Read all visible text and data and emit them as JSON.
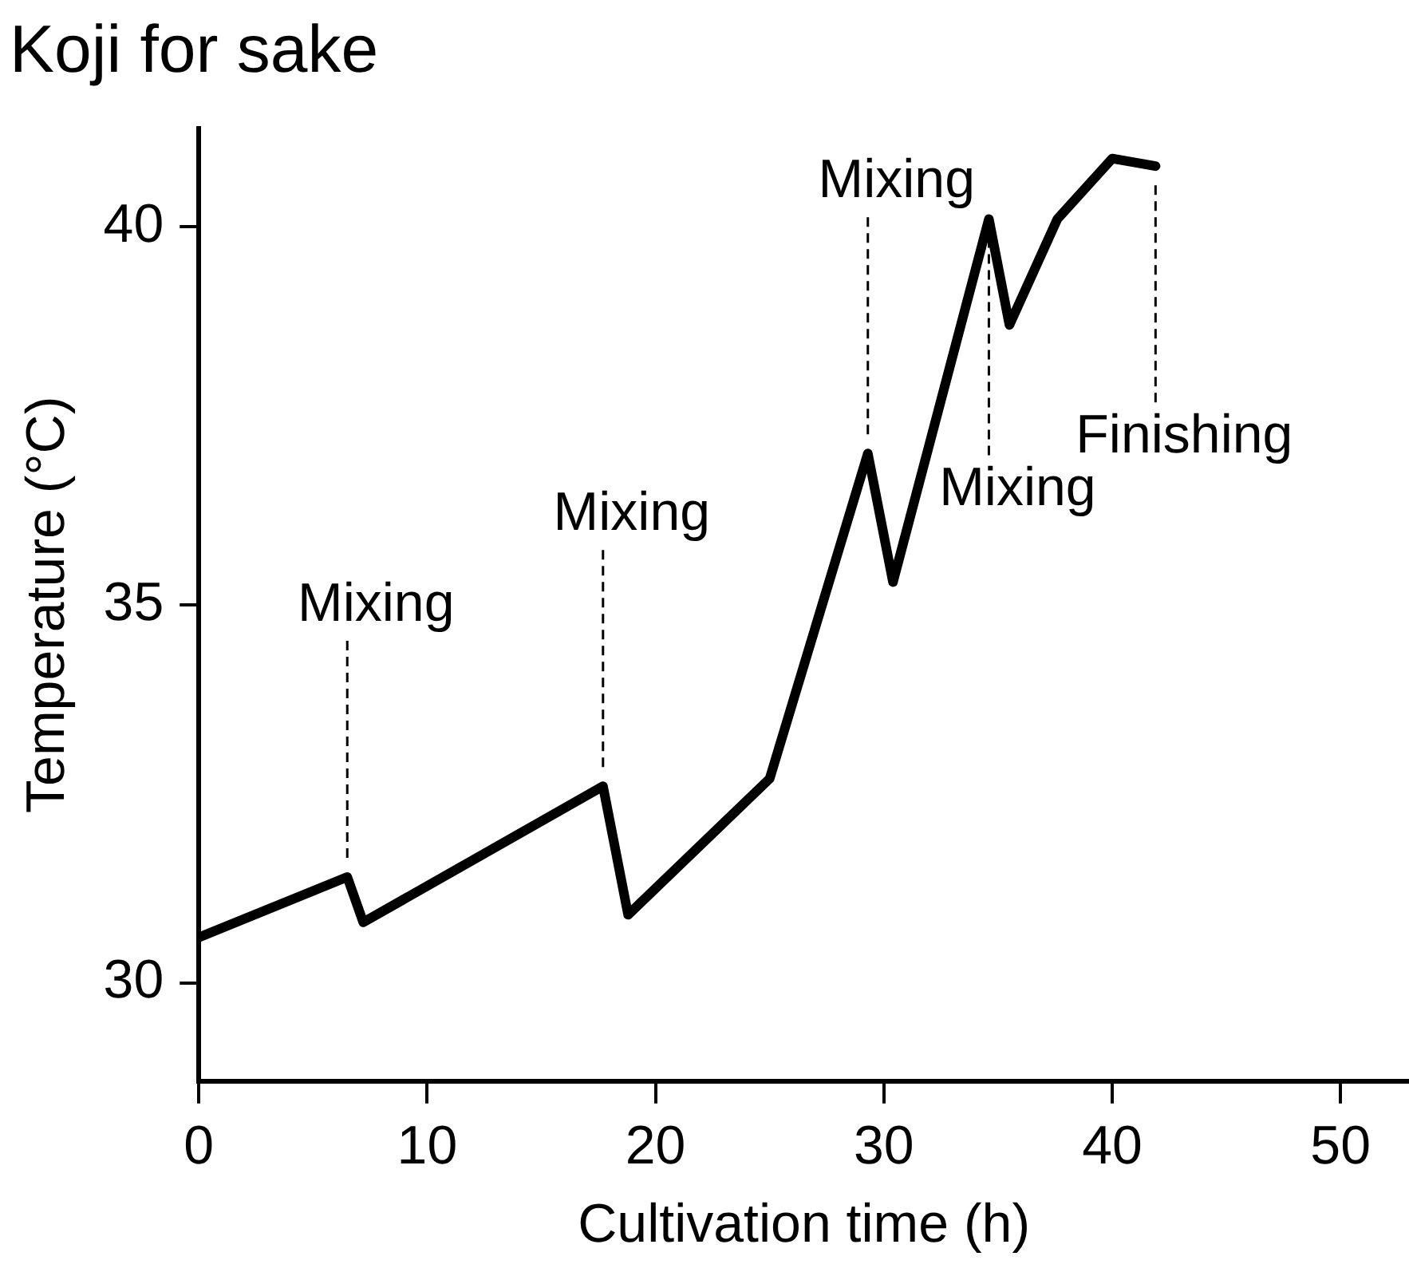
{
  "chart_data": {
    "type": "line",
    "title": "Koji for sake",
    "xlabel": "Cultivation time (h)",
    "ylabel": "Temperature (°C)",
    "x": [
      0,
      6.5,
      7.2,
      17.7,
      18.8,
      25.0,
      29.3,
      30.4,
      34.6,
      35.5,
      37.6,
      40.0,
      41.9
    ],
    "series": [
      {
        "color": "#000000",
        "values": [
          30.6,
          31.4,
          30.8,
          32.6,
          30.9,
          32.7,
          37.0,
          35.3,
          40.1,
          38.7,
          40.1,
          40.9,
          40.8
        ]
      }
    ],
    "xlim": [
      0,
      53
    ],
    "xticks": [
      0,
      10,
      20,
      30,
      40,
      50
    ],
    "ylim": [
      28.7,
      41.3
    ],
    "yticks": [
      30,
      35,
      40
    ],
    "grid": false,
    "legend": false,
    "marker": "none",
    "line_style": "solid",
    "annotations": [
      {
        "text": "Mixing",
        "x": 6.5,
        "y": 31.4
      },
      {
        "text": "Mixing",
        "x": 17.7,
        "y": 32.6
      },
      {
        "text": "Mixing",
        "x": 29.3,
        "y": 37.0
      },
      {
        "text": "Mixing",
        "x": 34.6,
        "y": 40.1
      },
      {
        "text": "Finishing",
        "x": 41.9,
        "y": 40.8
      }
    ]
  }
}
